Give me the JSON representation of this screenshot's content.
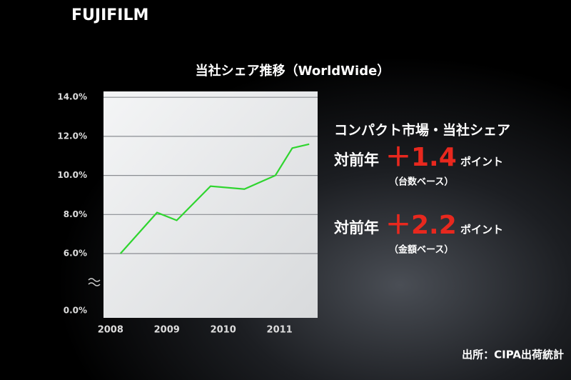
{
  "brand": "FUJIFILM",
  "chart_data": {
    "type": "line",
    "title": "当社シェア推移（WorldWide）",
    "x": [
      2008.1,
      2008.75,
      2009.1,
      2009.7,
      2010.3,
      2010.85,
      2011.15,
      2011.45
    ],
    "series": [
      {
        "color": "#2fd52f",
        "values": [
          6.0,
          8.1,
          7.7,
          9.45,
          9.3,
          10.0,
          11.4,
          11.6
        ]
      }
    ],
    "xlim": [
      2007.8,
      2011.6
    ],
    "xticks": [
      2008,
      2009,
      2010,
      2011
    ],
    "ylim": [
      0,
      14.3
    ],
    "yticks": [
      {
        "value": 0,
        "label": "0.0%"
      },
      {
        "value": 6,
        "label": "6.0%"
      },
      {
        "value": 8,
        "label": "8.0%"
      },
      {
        "value": 10,
        "label": "10.0%"
      },
      {
        "value": 12,
        "label": "12.0%"
      },
      {
        "value": 14,
        "label": "14.0%"
      }
    ],
    "axis_break": true,
    "grid": true
  },
  "notes": {
    "heading": "コンパクト市場・当社シェア",
    "items": [
      {
        "prefix": "対前年",
        "change": "＋1.4",
        "unit": "ポイント",
        "basis": "（台数ベース）"
      },
      {
        "prefix": "対前年",
        "change": "＋2.2",
        "unit": "ポイント",
        "basis": "（金額ベース）"
      }
    ]
  },
  "source": "出所：CIPA出荷統計"
}
